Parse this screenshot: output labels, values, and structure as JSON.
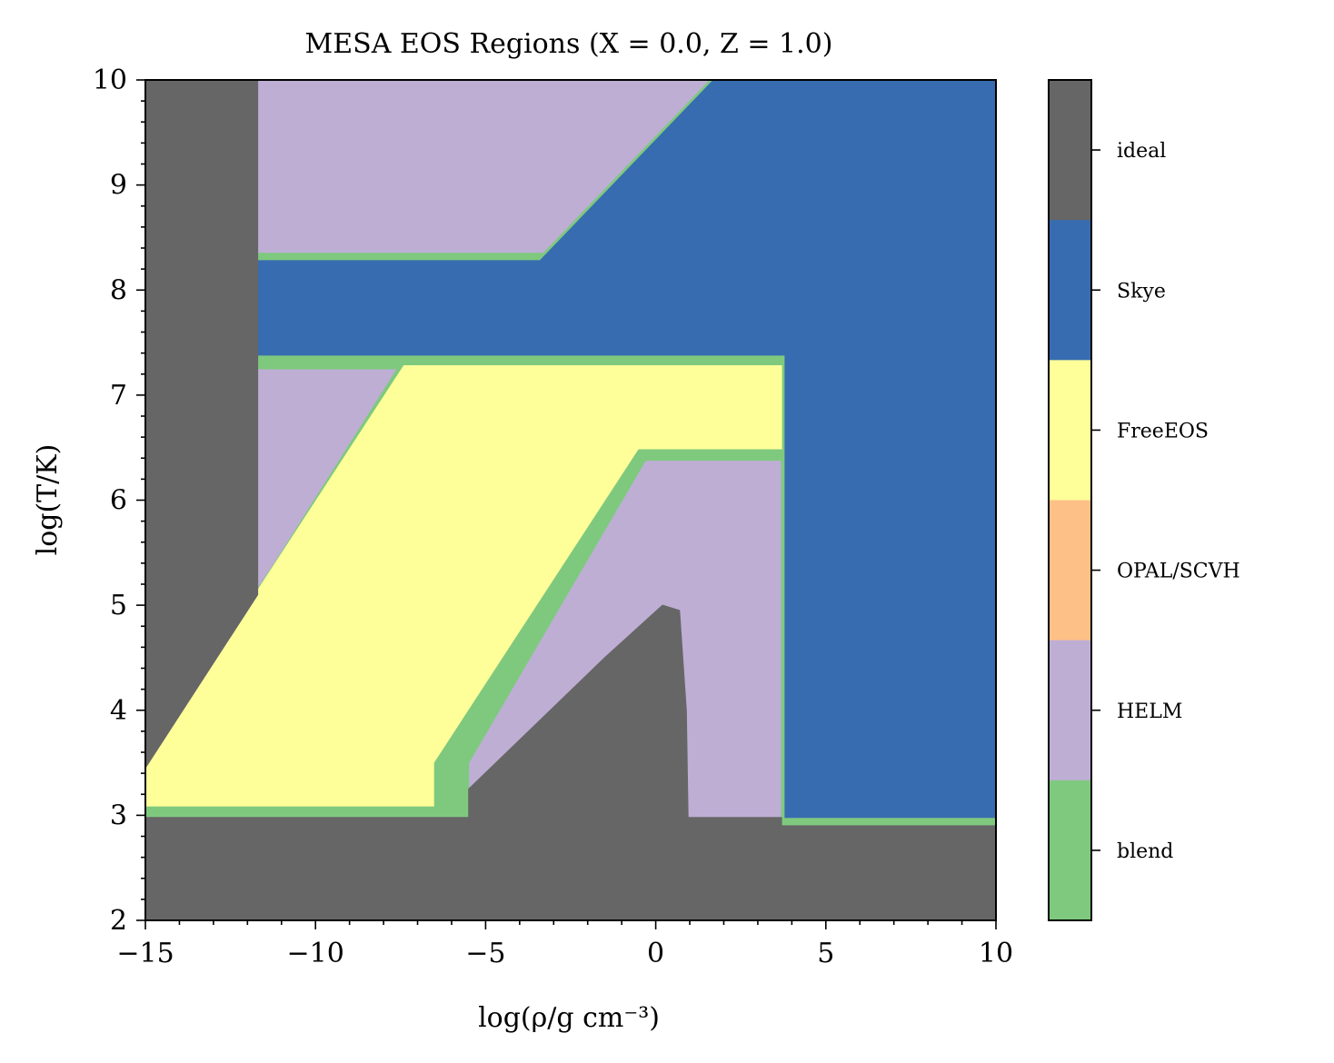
{
  "chart_data": {
    "type": "heatmap",
    "title": "MESA EOS Regions (X = 0.0, Z = 1.0)",
    "xlabel": "log(ρ/g cm⁻³)",
    "ylabel": "log(T/K)",
    "xlim": [
      -15,
      10
    ],
    "ylim": [
      2,
      10
    ],
    "x_ticks": [
      -15,
      -10,
      -5,
      0,
      5,
      10
    ],
    "x_tick_labels": [
      "−15",
      "−10",
      "−5",
      "0",
      "5",
      "10"
    ],
    "y_ticks": [
      2,
      3,
      4,
      5,
      6,
      7,
      8,
      9,
      10
    ],
    "y_tick_labels": [
      "2",
      "3",
      "4",
      "5",
      "6",
      "7",
      "8",
      "9",
      "10"
    ],
    "colorbar": {
      "categories": [
        "ideal",
        "Skye",
        "FreeEOS",
        "OPAL/SCVH",
        "HELM",
        "blend"
      ],
      "colors": [
        "#666666",
        "#386cb0",
        "#ffff99",
        "#fdc086",
        "#beaed4",
        "#7fc97f"
      ]
    },
    "regions": [
      {
        "name": "HELM",
        "color": "#beaed4",
        "points": [
          [
            -11.7,
            10
          ],
          [
            1.5,
            10
          ],
          [
            1.5,
            2.95
          ],
          [
            -11.7,
            2.95
          ]
        ]
      },
      {
        "name": "blend",
        "color": "#7fc97f",
        "points": [
          [
            1.0,
            10
          ],
          [
            1.6,
            10
          ],
          [
            -3.3,
            8.35
          ],
          [
            -12.1,
            8.35
          ],
          [
            -12.1,
            7.25
          ],
          [
            3.7,
            7.25
          ],
          [
            3.7,
            2.9
          ],
          [
            10,
            2.9
          ],
          [
            10,
            10
          ]
        ]
      },
      {
        "name": "Skye",
        "color": "#386cb0",
        "points": [
          [
            1.7,
            10
          ],
          [
            10,
            10
          ],
          [
            10,
            2.98
          ],
          [
            3.8,
            2.98
          ],
          [
            3.8,
            7.38
          ],
          [
            -12.0,
            7.38
          ],
          [
            -12.0,
            8.28
          ],
          [
            -3.4,
            8.28
          ]
        ]
      },
      {
        "name": "blend",
        "color": "#7fc97f",
        "points": [
          [
            -7.5,
            7.3
          ],
          [
            -7.3,
            7.3
          ],
          [
            -15,
            3.55
          ],
          [
            -15,
            3.45
          ]
        ]
      },
      {
        "name": "FreeEOS",
        "color": "#ffff99",
        "points": [
          [
            -7.4,
            7.28
          ],
          [
            3.7,
            7.28
          ],
          [
            3.7,
            6.48
          ],
          [
            -0.5,
            6.48
          ],
          [
            -5.6,
            3.5
          ],
          [
            -5.6,
            3.0
          ],
          [
            -6.5,
            3.0
          ],
          [
            -6.5,
            3.08
          ],
          [
            -15,
            3.08
          ],
          [
            -15,
            3.5
          ]
        ]
      },
      {
        "name": "blend",
        "color": "#7fc97f",
        "points": [
          [
            -0.5,
            6.48
          ],
          [
            3.7,
            6.48
          ],
          [
            3.7,
            6.38
          ],
          [
            -0.3,
            6.38
          ],
          [
            -5.5,
            3.5
          ],
          [
            -5.5,
            2.98
          ],
          [
            -15,
            2.98
          ],
          [
            -15,
            3.08
          ],
          [
            -6.5,
            3.08
          ],
          [
            -6.5,
            3.5
          ]
        ]
      },
      {
        "name": "ideal",
        "color": "#666666",
        "points": [
          [
            -15,
            10
          ],
          [
            -11.7,
            10
          ],
          [
            -11.7,
            5.1
          ],
          [
            -15,
            3.45
          ]
        ]
      },
      {
        "name": "ideal",
        "color": "#666666",
        "points": [
          [
            -5.5,
            3.25
          ],
          [
            -1.5,
            4.5
          ],
          [
            0.2,
            5.0
          ],
          [
            0.7,
            4.95
          ],
          [
            0.9,
            4.0
          ],
          [
            0.95,
            2.98
          ],
          [
            -5.5,
            2.98
          ]
        ]
      },
      {
        "name": "ideal",
        "color": "#666666",
        "points": [
          [
            -15,
            2.98
          ],
          [
            3.7,
            2.98
          ],
          [
            3.7,
            2.9
          ],
          [
            10,
            2.9
          ],
          [
            10,
            2
          ],
          [
            -15,
            2
          ]
        ]
      }
    ]
  }
}
